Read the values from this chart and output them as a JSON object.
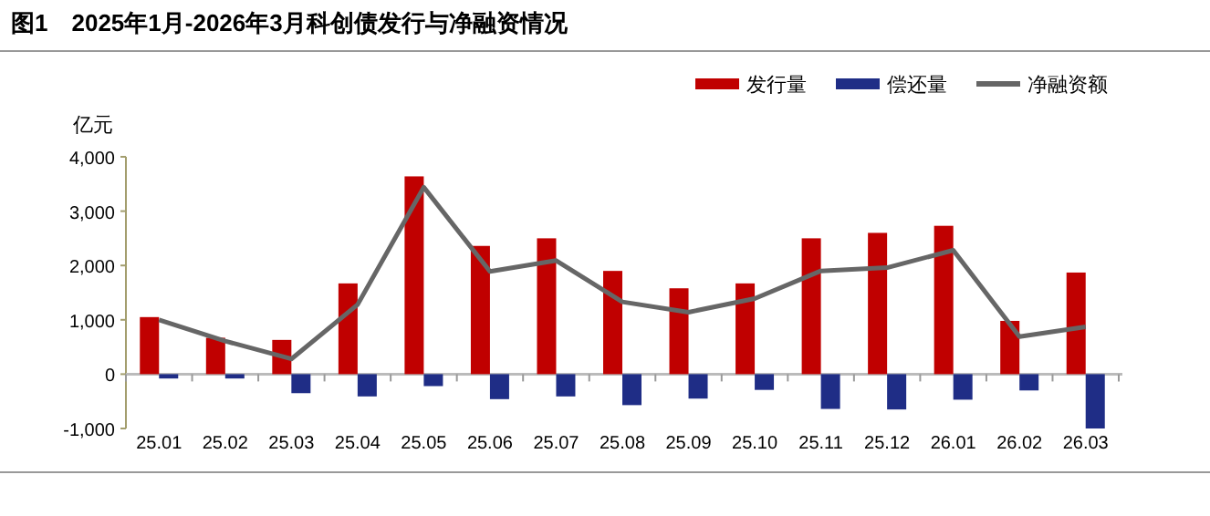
{
  "chart_data": {
    "type": "bar",
    "title": "图1　2025年1月-2026年3月科创债发行与净融资情况",
    "ylabel": "亿元",
    "categories": [
      "25.01",
      "25.02",
      "25.03",
      "25.04",
      "25.05",
      "25.06",
      "25.07",
      "25.08",
      "25.09",
      "25.10",
      "25.11",
      "25.12",
      "26.01",
      "26.02",
      "26.03"
    ],
    "series": [
      {
        "name": "发行量",
        "color": "#c00000",
        "values": [
          1050,
          670,
          630,
          1670,
          3640,
          2360,
          2500,
          1900,
          1580,
          1670,
          2500,
          2600,
          2730,
          980,
          1870
        ]
      },
      {
        "name": "偿还量",
        "color": "#1f2d86",
        "values": [
          -80,
          -80,
          -350,
          -410,
          -220,
          -460,
          -410,
          -570,
          -450,
          -290,
          -640,
          -650,
          -470,
          -300,
          -1000
        ]
      },
      {
        "name": "净融资额",
        "type": "line",
        "color": "#666666",
        "values": [
          1000,
          610,
          280,
          1280,
          3440,
          1890,
          2090,
          1330,
          1140,
          1390,
          1900,
          1960,
          2280,
          690,
          870
        ]
      }
    ],
    "ylim": [
      -1000,
      4000
    ],
    "yticks": [
      {
        "value": -1000,
        "label": "-1,000"
      },
      0,
      {
        "value": 1000,
        "label": "1,000"
      },
      {
        "value": 2000,
        "label": "2,000"
      },
      {
        "value": 3000,
        "label": "3,000"
      },
      {
        "value": 4000,
        "label": "4,000"
      }
    ],
    "legend": "top right"
  }
}
